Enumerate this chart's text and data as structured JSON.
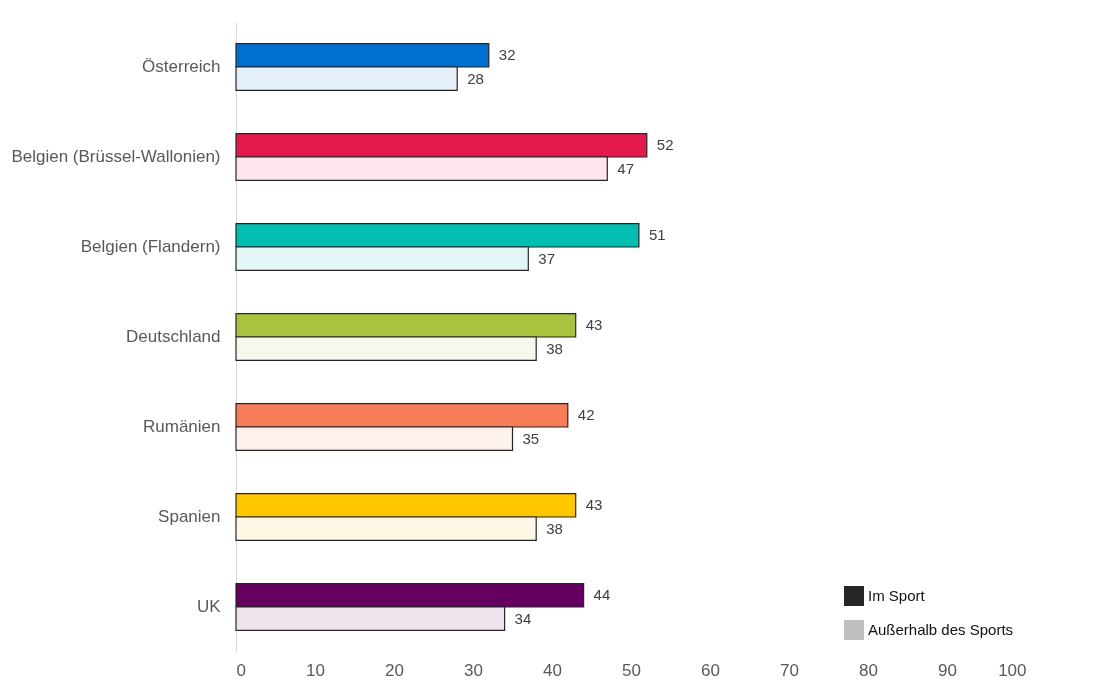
{
  "chart_data": {
    "type": "bar",
    "orientation": "horizontal",
    "categories": [
      "Österreich",
      "Belgien (Brüssel-Wallonien)",
      "Belgien (Flandern)",
      "Deutschland",
      "Rumänien",
      "Spanien",
      "UK"
    ],
    "series": [
      {
        "name": "Im Sport",
        "color": "#262626",
        "colors": [
          "#0070d0",
          "#e31a4a",
          "#00bfb2",
          "#a9c33f",
          "#f77d58",
          "#ffc700",
          "#650060"
        ],
        "values": [
          32,
          52,
          51,
          43,
          42,
          43,
          44
        ]
      },
      {
        "name": "Außerhalb des Sports",
        "color": "#bfbfbf",
        "colors": [
          "#e5f0fa",
          "#fde7ec",
          "#e2f6f5",
          "#f6f8ec",
          "#fdf1ed",
          "#fff8e6",
          "#ede3ed"
        ],
        "values": [
          28,
          47,
          37,
          38,
          35,
          38,
          34
        ]
      }
    ],
    "xlim": [
      0,
      100
    ],
    "xticks": [
      0,
      10,
      20,
      30,
      40,
      50,
      60,
      70,
      80,
      90,
      100
    ],
    "data_labels": true,
    "grid": false,
    "legend": "bottom right"
  }
}
